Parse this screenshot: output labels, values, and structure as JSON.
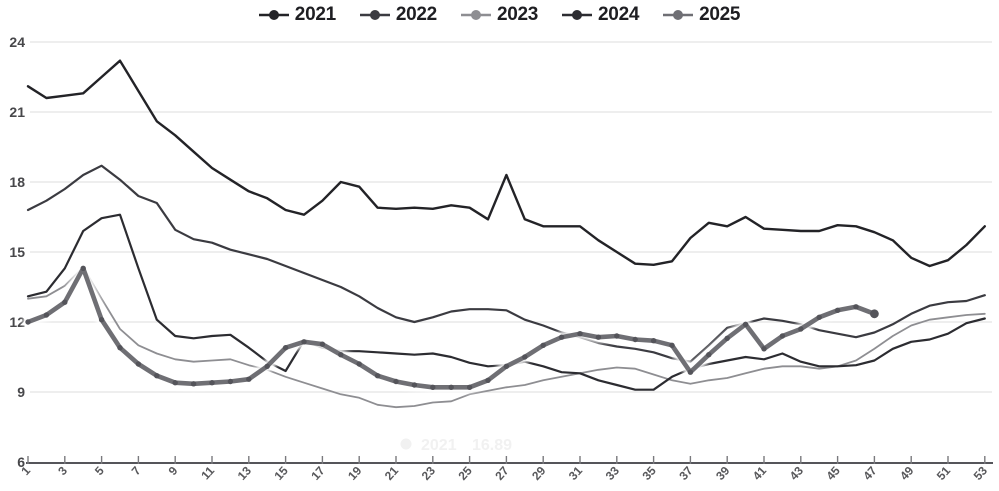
{
  "chart_data": {
    "type": "line",
    "title": "",
    "xlabel": "",
    "ylabel": "",
    "x_unit": "week-number",
    "x_range": [
      1,
      53
    ],
    "ylim": [
      6,
      24
    ],
    "y_tick_labels": [
      "24",
      "21",
      "18",
      "15",
      "12",
      "9",
      "6"
    ],
    "y_ticks": [
      24,
      21,
      18,
      15,
      12,
      9,
      6
    ],
    "x_tick_labels": [
      "1",
      "3",
      "5",
      "7",
      "9",
      "11",
      "13",
      "15",
      "17",
      "19",
      "21",
      "23",
      "25",
      "27",
      "29",
      "31",
      "33",
      "35",
      "37",
      "39",
      "41",
      "43",
      "45",
      "47",
      "49",
      "51",
      "53"
    ],
    "grid": "horizontal",
    "legend_position": "top-center",
    "series": [
      {
        "name": "2021",
        "color": "#232327",
        "width": 2.4,
        "markers": false,
        "values": [
          22.1,
          21.6,
          21.7,
          21.8,
          22.5,
          23.2,
          21.9,
          20.6,
          20.0,
          19.3,
          18.6,
          18.1,
          17.6,
          17.3,
          16.8,
          16.6,
          17.2,
          18.0,
          17.8,
          16.9,
          16.85,
          16.9,
          16.85,
          17.0,
          16.9,
          16.4,
          18.3,
          16.4,
          16.1,
          16.1,
          16.1,
          15.5,
          15.0,
          14.5,
          14.45,
          14.6,
          15.6,
          16.25,
          16.1,
          16.5,
          16.0,
          15.95,
          15.9,
          15.9,
          16.15,
          16.1,
          15.85,
          15.5,
          14.75,
          14.4,
          14.65,
          15.3,
          16.1
        ]
      },
      {
        "name": "2022",
        "color": "#3b3b41",
        "width": 2.2,
        "markers": false,
        "values": [
          16.8,
          17.2,
          17.7,
          18.3,
          18.7,
          18.1,
          17.4,
          17.1,
          15.95,
          15.55,
          15.4,
          15.1,
          14.9,
          14.7,
          14.4,
          14.1,
          13.8,
          13.5,
          13.1,
          12.6,
          12.2,
          12.0,
          12.2,
          12.45,
          12.55,
          12.55,
          12.5,
          12.1,
          11.85,
          11.55,
          11.35,
          11.1,
          10.95,
          10.85,
          10.7,
          10.45,
          10.3,
          11.0,
          11.75,
          11.95,
          12.15,
          12.05,
          11.9,
          11.65,
          11.5,
          11.35,
          11.55,
          11.9,
          12.35,
          12.7,
          12.85,
          12.9,
          13.15
        ]
      },
      {
        "name": "2023",
        "color": "#8e8e92",
        "width": 1.8,
        "markers": false,
        "values": [
          13.0,
          13.1,
          13.55,
          14.35,
          13.0,
          11.7,
          11.0,
          10.65,
          10.4,
          10.3,
          10.35,
          10.4,
          10.15,
          9.95,
          9.65,
          9.4,
          9.15,
          8.9,
          8.75,
          8.45,
          8.35,
          8.4,
          8.55,
          8.6,
          8.9,
          9.05,
          9.2,
          9.3,
          9.5,
          9.65,
          9.8,
          9.95,
          10.05,
          10.0,
          9.75,
          9.5,
          9.35,
          9.5,
          9.6,
          9.8,
          10.0,
          10.1,
          10.1,
          10.0,
          10.1,
          10.35,
          10.85,
          11.4,
          11.85,
          12.1,
          12.2,
          12.3,
          12.35
        ]
      },
      {
        "name": "2024",
        "color": "#2c2c31",
        "width": 2.2,
        "markers": false,
        "values": [
          13.1,
          13.3,
          14.3,
          15.9,
          16.45,
          16.6,
          14.3,
          12.1,
          11.4,
          11.3,
          11.4,
          11.45,
          10.9,
          10.3,
          9.9,
          11.2,
          10.9,
          10.75,
          10.75,
          10.7,
          10.65,
          10.6,
          10.65,
          10.5,
          10.25,
          10.1,
          10.15,
          10.3,
          10.1,
          9.85,
          9.8,
          9.5,
          9.3,
          9.1,
          9.1,
          9.65,
          10.0,
          10.2,
          10.35,
          10.5,
          10.4,
          10.65,
          10.3,
          10.1,
          10.1,
          10.15,
          10.35,
          10.85,
          11.15,
          11.25,
          11.5,
          11.95,
          12.15
        ]
      },
      {
        "name": "2025",
        "color": "#6f6f74",
        "width": 4.6,
        "markers": true,
        "marker_color": "#54545a",
        "halo": true,
        "values": [
          12.0,
          12.3,
          12.85,
          14.3,
          12.1,
          10.9,
          10.2,
          9.7,
          9.4,
          9.35,
          9.4,
          9.45,
          9.55,
          10.1,
          10.9,
          11.15,
          11.05,
          10.6,
          10.2,
          9.7,
          9.45,
          9.3,
          9.2,
          9.2,
          9.2,
          9.5,
          10.1,
          10.5,
          11.0,
          11.35,
          11.5,
          11.35,
          11.4,
          11.25,
          11.2,
          11.0,
          9.85,
          10.6,
          11.3,
          11.9,
          10.85,
          11.4,
          11.7,
          12.2,
          12.5,
          12.65,
          12.35
        ]
      }
    ],
    "ghost_tooltip": {
      "label": "2021",
      "value": "16.89"
    }
  },
  "style_colors": {
    "gridline": "#e4e4e4",
    "axis_line": "#55555a",
    "x_tick_label": "#58585b",
    "y_tick_label": "#47474a",
    "tick_mark": "#7a7a7e",
    "ghost_text": "#f1f1f1",
    "legend_text": "#1e1e22"
  }
}
